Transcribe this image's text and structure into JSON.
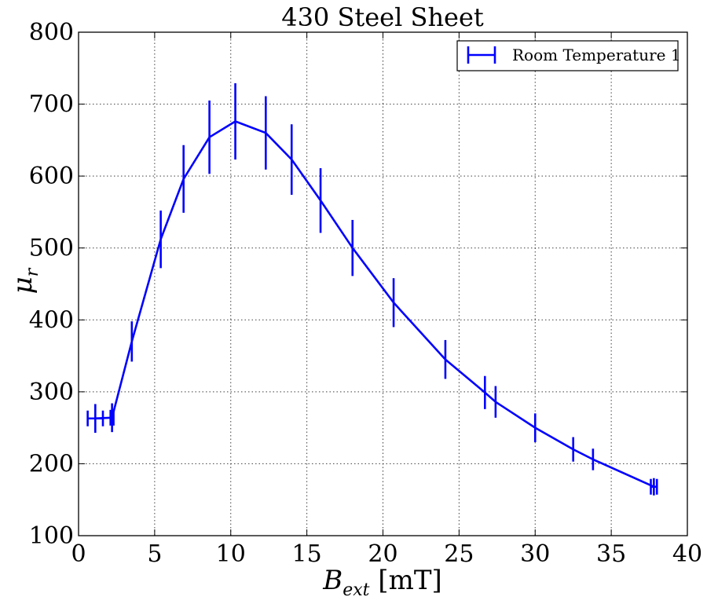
{
  "chart_data": {
    "type": "line",
    "title": "430 Steel Sheet",
    "xlabel": {
      "main": "B",
      "sub": "ext",
      "unit": " [mT]"
    },
    "ylabel": {
      "main": "μ",
      "sub": "r"
    },
    "xlim": [
      0,
      40
    ],
    "ylim": [
      100,
      800
    ],
    "xticks": [
      0,
      5,
      10,
      15,
      20,
      25,
      30,
      35,
      40
    ],
    "yticks": [
      100,
      200,
      300,
      400,
      500,
      600,
      700,
      800
    ],
    "grid": true,
    "legend": {
      "placement": "top-right"
    },
    "color": "#0000ff",
    "series": [
      {
        "name": "Room Temperature 1",
        "x": [
          1.1,
          2.2,
          3.5,
          5.4,
          6.9,
          8.6,
          10.3,
          12.3,
          14.0,
          15.9,
          18.0,
          20.7,
          24.1,
          26.7,
          27.4,
          30.0,
          32.5,
          33.8,
          37.8
        ],
        "y": [
          263,
          264,
          370,
          512,
          596,
          654,
          676,
          660,
          623,
          566,
          500,
          424,
          345,
          299,
          286,
          250,
          220,
          206,
          168
        ],
        "y_err": [
          20,
          20,
          28,
          40,
          47,
          51,
          53,
          51,
          49,
          45,
          39,
          34,
          27,
          23,
          22,
          20,
          17,
          15,
          12
        ],
        "x_err": [
          0.5,
          0.1,
          0,
          0,
          0,
          0,
          0,
          0,
          0,
          0,
          0,
          0,
          0,
          0,
          0,
          0,
          0,
          0,
          0.2
        ]
      }
    ]
  }
}
